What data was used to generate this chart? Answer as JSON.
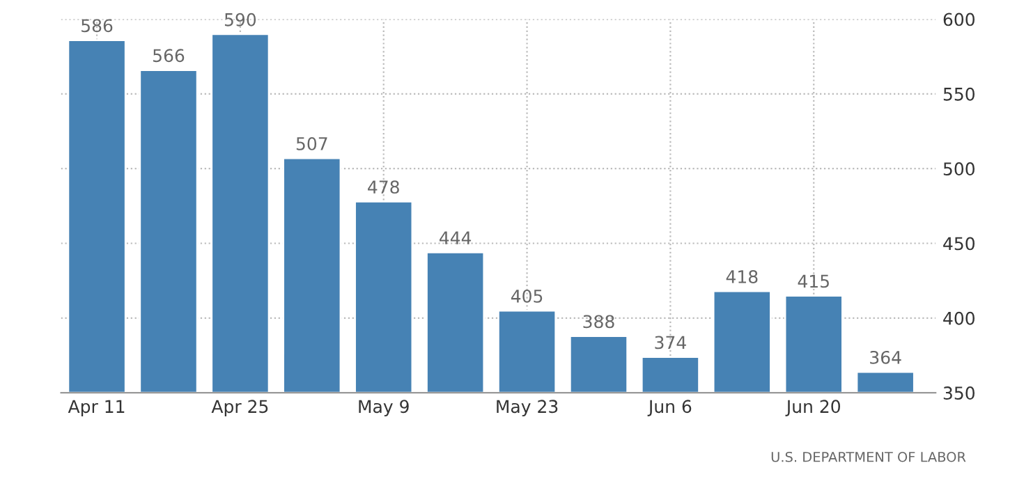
{
  "chart_data": {
    "type": "bar",
    "categories": [
      "Apr 11",
      null,
      "Apr 25",
      null,
      "May 9",
      null,
      "May 23",
      null,
      "Jun 6",
      null,
      "Jun 20",
      null
    ],
    "values": [
      586,
      566,
      590,
      507,
      478,
      444,
      405,
      388,
      374,
      418,
      415,
      364
    ],
    "color": "#4682b4",
    "ylim": [
      350,
      600
    ],
    "yticks": [
      350,
      400,
      450,
      500,
      550,
      600
    ],
    "grid": true,
    "data_labels": true,
    "annotations": [
      "U.S. DEPARTMENT OF LABOR"
    ]
  }
}
